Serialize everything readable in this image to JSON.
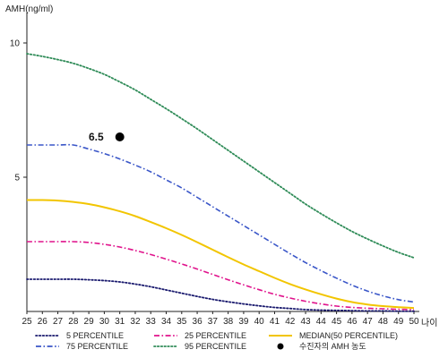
{
  "chart_data": {
    "type": "line",
    "ylabel": "AMH(ng/ml)",
    "xlabel": "나이",
    "xlim": [
      25,
      50
    ],
    "ylim": [
      0,
      11
    ],
    "x_ticks": [
      25,
      26,
      27,
      28,
      29,
      30,
      31,
      32,
      33,
      34,
      35,
      36,
      37,
      38,
      39,
      40,
      41,
      42,
      43,
      44,
      45,
      46,
      47,
      48,
      49,
      50
    ],
    "y_ticks": [
      5,
      10
    ],
    "x": [
      25,
      26,
      27,
      28,
      29,
      30,
      31,
      32,
      33,
      34,
      35,
      36,
      37,
      38,
      39,
      40,
      41,
      42,
      43,
      44,
      45,
      46,
      47,
      48,
      49,
      50
    ],
    "series": [
      {
        "name": "5 PERCENTILE",
        "color": "#1a1a6e",
        "dash": "dotted",
        "values": [
          1.2,
          1.2,
          1.2,
          1.2,
          1.18,
          1.15,
          1.1,
          1.02,
          0.92,
          0.8,
          0.68,
          0.56,
          0.45,
          0.36,
          0.28,
          0.21,
          0.15,
          0.11,
          0.07,
          0.05,
          0.04,
          0.03,
          0.02,
          0.02,
          0.01,
          0.01
        ]
      },
      {
        "name": "25 PERCENTILE",
        "color": "#e0138c",
        "dash": "dashdot",
        "values": [
          2.6,
          2.6,
          2.6,
          2.6,
          2.57,
          2.5,
          2.4,
          2.27,
          2.12,
          1.95,
          1.77,
          1.58,
          1.38,
          1.18,
          0.99,
          0.81,
          0.64,
          0.5,
          0.38,
          0.28,
          0.2,
          0.15,
          0.12,
          0.1,
          0.08,
          0.07
        ]
      },
      {
        "name": "MEDIAN(50 PERCENTILE)",
        "color": "#f2c500",
        "dash": "solid",
        "values": [
          4.15,
          4.15,
          4.13,
          4.08,
          4.0,
          3.88,
          3.73,
          3.55,
          3.33,
          3.1,
          2.85,
          2.58,
          2.3,
          2.02,
          1.75,
          1.5,
          1.25,
          1.02,
          0.82,
          0.64,
          0.48,
          0.35,
          0.26,
          0.2,
          0.16,
          0.13
        ]
      },
      {
        "name": "75 PERCENTILE",
        "color": "#3a56c8",
        "dash": "dashdot",
        "values": [
          6.2,
          6.2,
          6.2,
          6.2,
          6.05,
          5.88,
          5.68,
          5.45,
          5.2,
          4.9,
          4.6,
          4.25,
          3.9,
          3.55,
          3.2,
          2.85,
          2.5,
          2.15,
          1.82,
          1.52,
          1.24,
          0.98,
          0.76,
          0.58,
          0.44,
          0.35
        ]
      },
      {
        "name": "95 PERCENTILE",
        "color": "#2e8b57",
        "dash": "dotted",
        "values": [
          9.6,
          9.5,
          9.38,
          9.24,
          9.05,
          8.83,
          8.55,
          8.25,
          7.9,
          7.55,
          7.18,
          6.8,
          6.4,
          6.0,
          5.6,
          5.2,
          4.8,
          4.4,
          4.0,
          3.64,
          3.3,
          2.98,
          2.7,
          2.44,
          2.2,
          2.0
        ]
      }
    ],
    "points": [
      {
        "name": "수진자의 AMH 농도",
        "x": 31,
        "y": 6.5,
        "label": "6.5",
        "color": "#000000"
      }
    ],
    "legend": [
      {
        "label": "5 PERCENTILE",
        "kind": "line",
        "series": 0
      },
      {
        "label": "25 PERCENTILE",
        "kind": "line",
        "series": 1
      },
      {
        "label": "MEDIAN(50 PERCENTILE)",
        "kind": "line",
        "series": 2
      },
      {
        "label": "75 PERCENTILE",
        "kind": "line",
        "series": 3
      },
      {
        "label": "95 PERCENTILE",
        "kind": "line",
        "series": 4
      },
      {
        "label": "수진자의 AMH 농도",
        "kind": "point"
      }
    ],
    "legend_position": "bottom",
    "grid": false
  }
}
